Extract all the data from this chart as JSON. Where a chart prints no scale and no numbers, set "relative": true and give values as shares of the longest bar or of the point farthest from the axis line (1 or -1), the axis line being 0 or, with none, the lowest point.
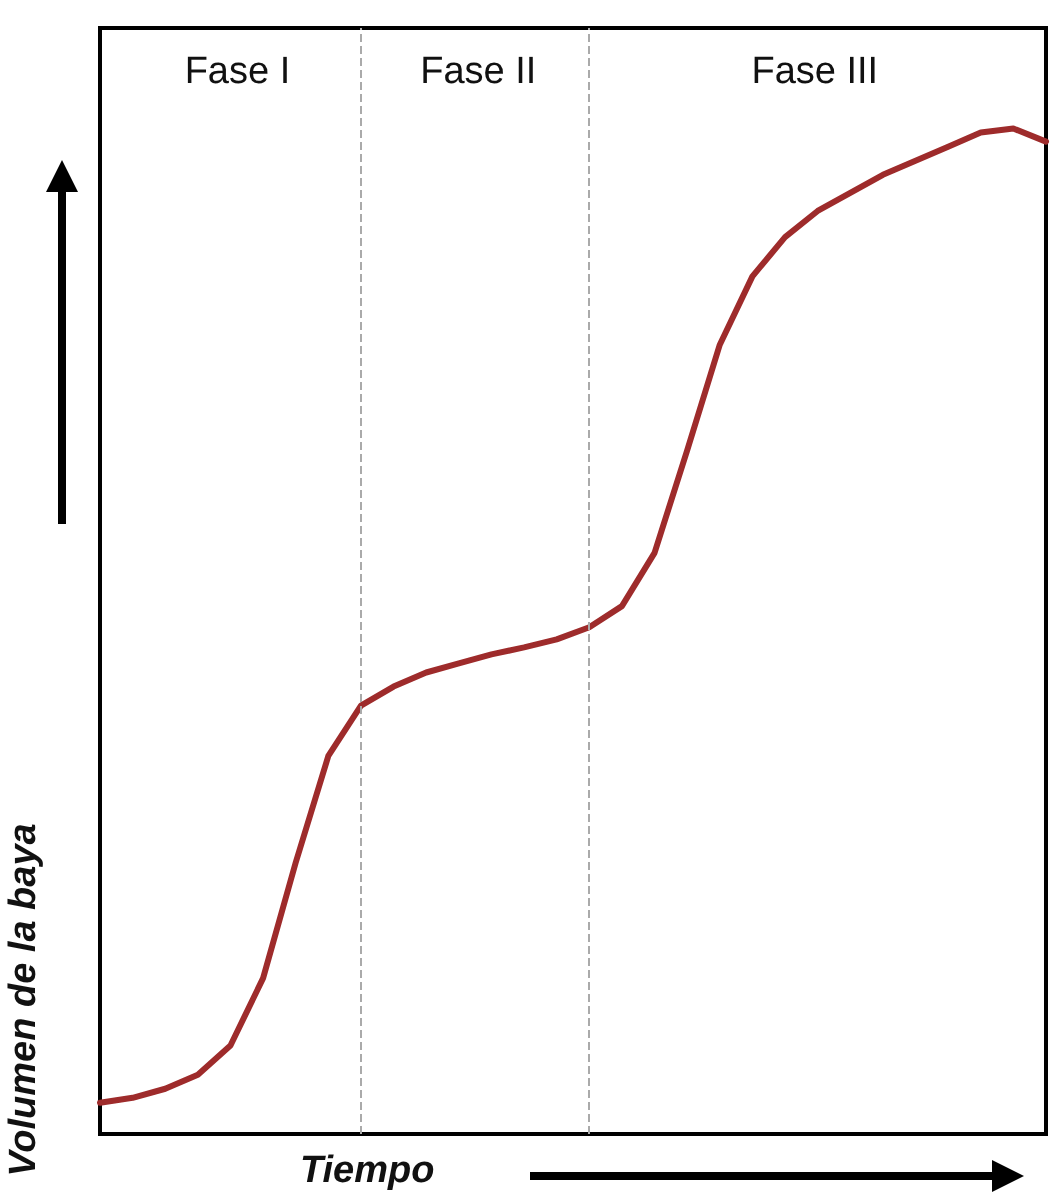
{
  "chart_data": {
    "type": "line",
    "relative": true,
    "xlabel": "Tiempo",
    "ylabel": "Volumen de la baya",
    "grid": false,
    "marker": "none",
    "line_style": "solid",
    "annotations": [
      "Fase I",
      "Fase II",
      "Fase III"
    ],
    "categories": [
      null,
      null,
      null,
      null,
      null,
      null,
      null,
      null,
      null,
      null,
      null,
      null,
      null,
      null,
      null,
      null,
      null,
      null,
      null,
      null,
      null,
      null,
      null,
      null,
      null,
      null,
      null,
      null,
      null,
      null
    ],
    "series": [
      {
        "color": "#9e2b2b",
        "values": [
          0.031,
          0.036,
          0.045,
          0.059,
          0.088,
          0.155,
          0.27,
          0.376,
          0.426,
          0.445,
          0.459,
          0.468,
          0.477,
          0.484,
          0.492,
          0.504,
          0.525,
          0.578,
          0.68,
          0.785,
          0.853,
          0.892,
          0.918,
          0.936,
          0.954,
          0.968,
          0.982,
          0.996,
          1.0,
          0.987
        ]
      }
    ]
  }
}
